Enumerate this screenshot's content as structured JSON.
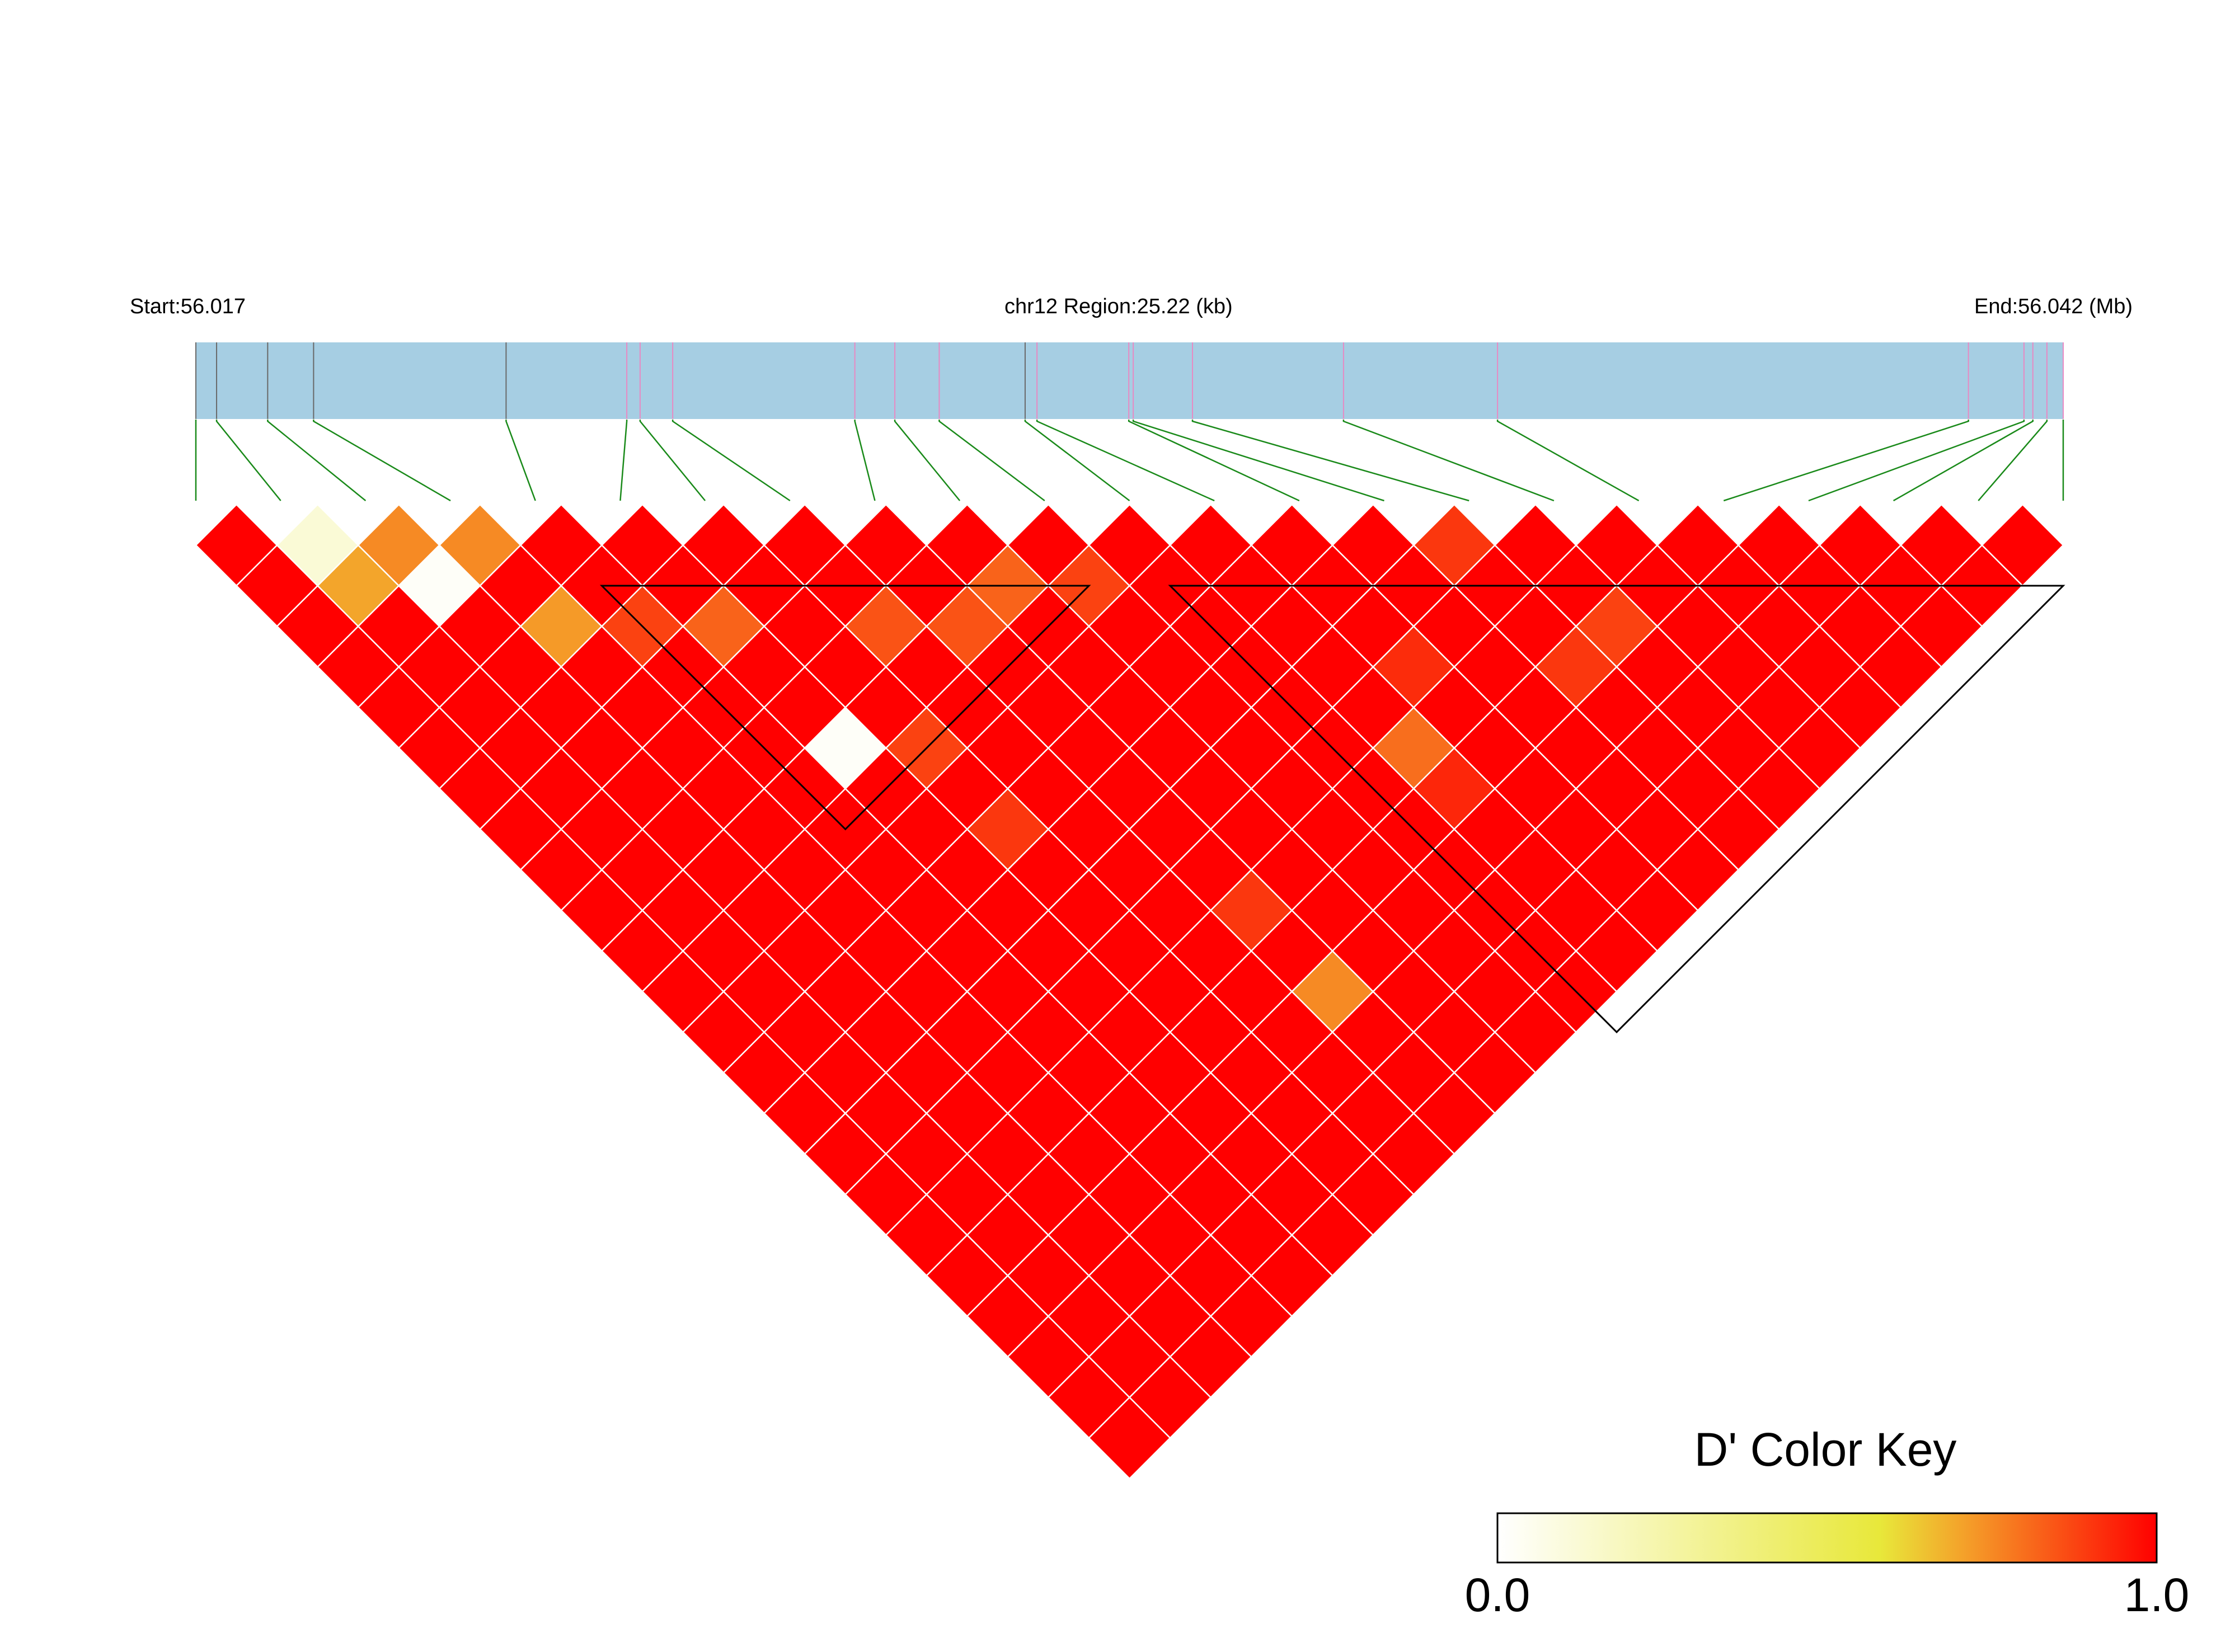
{
  "header": {
    "start_label": "Start:56.017",
    "region_label": "chr12 Region:25.22 (kb)",
    "end_label": "End:56.042 (Mb)"
  },
  "colors": {
    "track_fill": "#a6cee3",
    "snp_tick_gray": "#696969",
    "snp_tick_pink": "#e78ac3",
    "connector": "#1a8a1a",
    "block_outline": "#000000",
    "grid_line": "#ffffff",
    "key_low": "#ffffff",
    "key_mid": "#e8e83a",
    "key_high": "#ff0000"
  },
  "chart_data": {
    "type": "heatmap",
    "subtype": "LD triangle (D')",
    "chromosome": "chr12",
    "region_start_mb": 56.017,
    "region_end_mb": 56.042,
    "region_length_kb": 25.22,
    "n_snps": 23,
    "snp_positions_kb": [
      0.0,
      0.28,
      0.97,
      1.59,
      4.19,
      5.82,
      6.0,
      6.44,
      8.9,
      9.44,
      10.04,
      11.2,
      11.36,
      12.66,
      13.46,
      17.58,
      23.94,
      24.69,
      24.81,
      25.0,
      25.22,
      12.6,
      15.5
    ],
    "default_dprime": 1.0,
    "dprime_exceptions": [
      {
        "i": 2,
        "j": 3,
        "value": 0.12
      },
      {
        "i": 2,
        "j": 4,
        "value": 0.7
      },
      {
        "i": 3,
        "j": 4,
        "value": 0.75
      },
      {
        "i": 3,
        "j": 5,
        "value": 0.02
      },
      {
        "i": 4,
        "j": 5,
        "value": 0.75
      },
      {
        "i": 4,
        "j": 7,
        "value": 0.72
      },
      {
        "i": 5,
        "j": 8,
        "value": 0.88
      },
      {
        "i": 6,
        "j": 9,
        "value": 0.82
      },
      {
        "i": 8,
        "j": 11,
        "value": 0.85
      },
      {
        "i": 6,
        "j": 12,
        "value": 0.02
      },
      {
        "i": 7,
        "j": 13,
        "value": 0.88
      },
      {
        "i": 9,
        "j": 12,
        "value": 0.85
      },
      {
        "i": 10,
        "j": 12,
        "value": 0.82
      },
      {
        "i": 11,
        "j": 13,
        "value": 0.88
      },
      {
        "i": 7,
        "j": 15,
        "value": 0.9
      },
      {
        "i": 16,
        "j": 17,
        "value": 0.9
      },
      {
        "i": 16,
        "j": 20,
        "value": 0.9
      },
      {
        "i": 17,
        "j": 20,
        "value": 0.88
      },
      {
        "i": 9,
        "j": 19,
        "value": 0.9
      },
      {
        "i": 9,
        "j": 21,
        "value": 0.75
      },
      {
        "i": 13,
        "j": 19,
        "value": 0.8
      },
      {
        "i": 13,
        "j": 20,
        "value": 0.93
      },
      {
        "i": 14,
        "j": 18,
        "value": 0.92
      }
    ],
    "haplotype_blocks": [
      {
        "first_snp": 6,
        "last_snp": 11
      },
      {
        "first_snp": 13,
        "last_snp": 23
      }
    ],
    "color_key": {
      "title": "D' Color Key",
      "min_label": "0.0",
      "max_label": "1.0",
      "range": [
        0.0,
        1.0
      ]
    }
  }
}
